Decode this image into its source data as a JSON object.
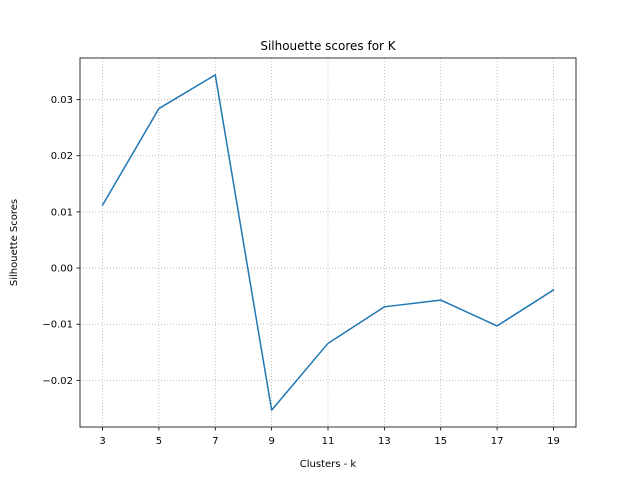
{
  "chart_data": {
    "type": "line",
    "title": "Silhouette scores for K",
    "xlabel": "Clusters - k",
    "ylabel": "Silhouette Scores",
    "x": [
      3,
      5,
      7,
      9,
      11,
      13,
      15,
      17,
      19
    ],
    "series": [
      {
        "values": [
          0.0112,
          0.0284,
          0.0344,
          -0.0253,
          -0.0134,
          -0.0069,
          -0.0057,
          -0.0103,
          -0.0039
        ],
        "color": "#1f77b4"
      }
    ],
    "xticks": [
      3,
      5,
      7,
      9,
      11,
      13,
      15,
      17,
      19
    ],
    "xtick_labels": [
      "3",
      "5",
      "7",
      "9",
      "11",
      "13",
      "15",
      "17",
      "19"
    ],
    "yticks": [
      -0.02,
      -0.01,
      0.0,
      0.01,
      0.02,
      0.03
    ],
    "ytick_labels": [
      "−0.02",
      "−0.01",
      "0.00",
      "0.01",
      "0.02",
      "0.03"
    ],
    "xlim": [
      2.2,
      19.8
    ],
    "ylim": [
      -0.0283,
      0.0374
    ],
    "grid": true,
    "grid_style": "dotted",
    "legend": false
  }
}
